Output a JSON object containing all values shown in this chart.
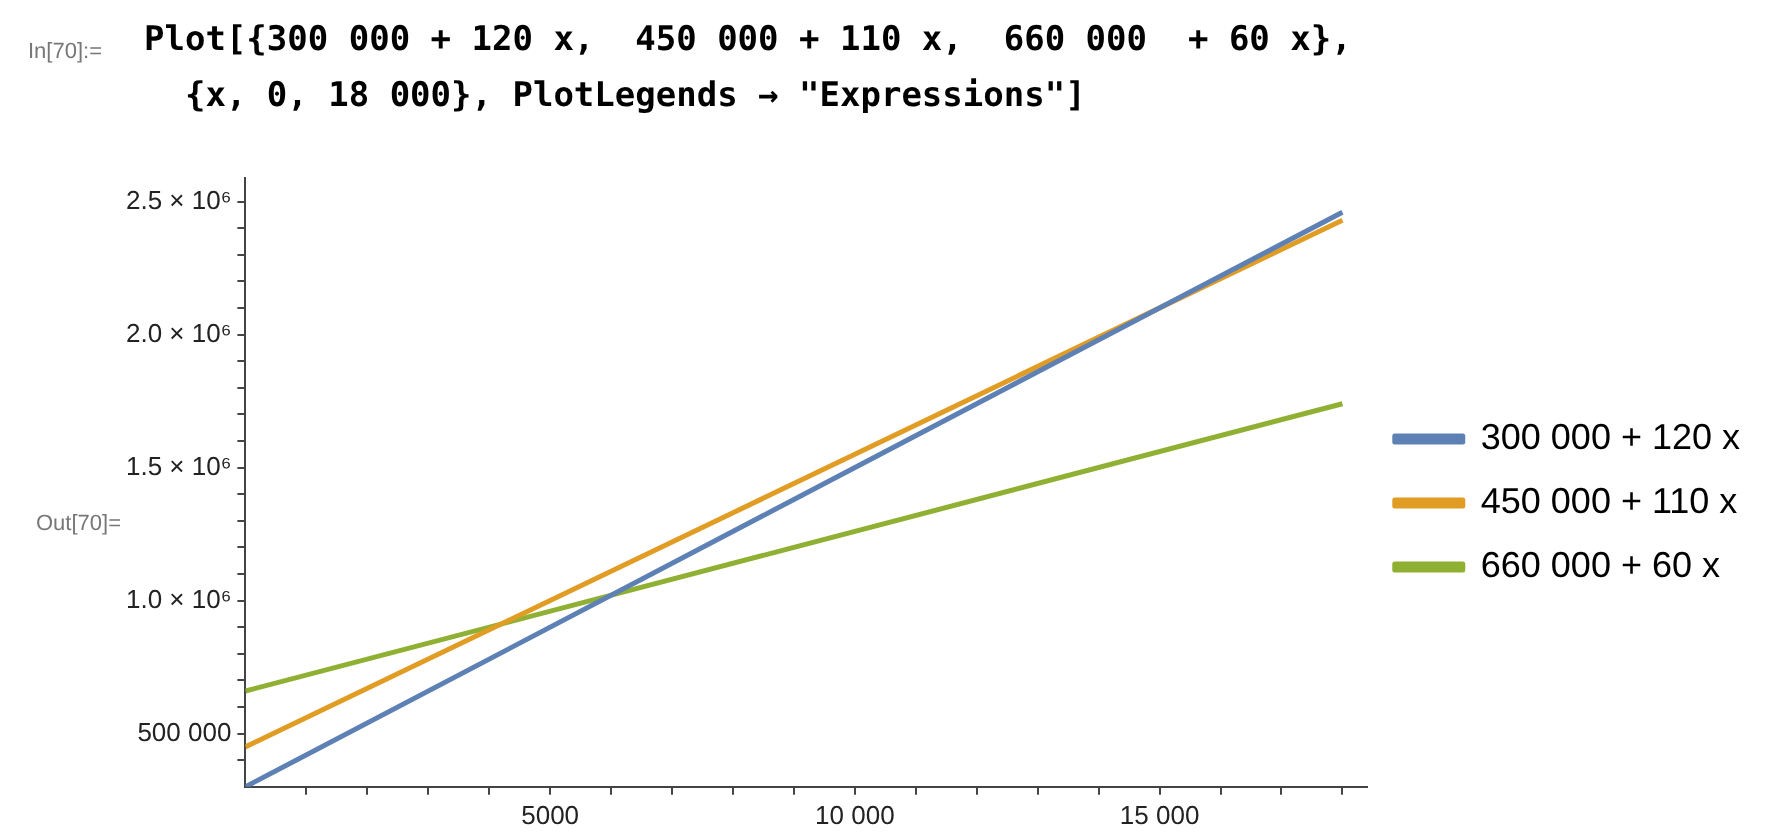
{
  "chart_data": {
    "type": "line",
    "title": "Plot[{300 000 + 120 x,  450 000 + 110 x,  660 000  + 60 x},\n  {x, 0, 18 000}, PlotLegends → \"Expressions\"]",
    "annotations": [
      "In[70]:=",
      "Out[70]="
    ],
    "x": [
      0,
      9000,
      18000
    ],
    "series": [
      {
        "name": "300 000 + 120 x",
        "color": "#5e81b5",
        "values": [
          300000,
          1380000,
          2460000
        ]
      },
      {
        "name": "450 000 + 110 x",
        "color": "#e19c24",
        "values": [
          450000,
          1440000,
          2430000
        ]
      },
      {
        "name": "660 000 + 60 x",
        "color": "#8fb032",
        "values": [
          660000,
          1200000,
          1740000
        ]
      }
    ],
    "xlim": [
      0,
      18400
    ],
    "xticks": [
      {
        "value": 1000,
        "label": null
      },
      {
        "value": 2000,
        "label": null
      },
      {
        "value": 3000,
        "label": null
      },
      {
        "value": 4000,
        "label": null
      },
      5000,
      {
        "value": 6000,
        "label": null
      },
      {
        "value": 7000,
        "label": null
      },
      {
        "value": 8000,
        "label": null
      },
      {
        "value": 9000,
        "label": null
      },
      {
        "value": 10000,
        "label": "10 000"
      },
      {
        "value": 11000,
        "label": null
      },
      {
        "value": 12000,
        "label": null
      },
      {
        "value": 13000,
        "label": null
      },
      {
        "value": 14000,
        "label": null
      },
      {
        "value": 15000,
        "label": "15 000"
      },
      {
        "value": 16000,
        "label": null
      },
      {
        "value": 17000,
        "label": null
      },
      {
        "value": 18000,
        "label": null
      }
    ],
    "ylim": [
      300000,
      2590000
    ],
    "yticks": [
      {
        "value": 400000,
        "label": null
      },
      {
        "value": 500000,
        "label": "500 000"
      },
      {
        "value": 600000,
        "label": null
      },
      {
        "value": 700000,
        "label": null
      },
      {
        "value": 800000,
        "label": null
      },
      {
        "value": 900000,
        "label": null
      },
      {
        "value": 1000000,
        "label": "1.0 × 10⁶"
      },
      {
        "value": 1100000,
        "label": null
      },
      {
        "value": 1200000,
        "label": null
      },
      {
        "value": 1300000,
        "label": null
      },
      {
        "value": 1400000,
        "label": null
      },
      {
        "value": 1500000,
        "label": "1.5 × 10⁶"
      },
      {
        "value": 1600000,
        "label": null
      },
      {
        "value": 1700000,
        "label": null
      },
      {
        "value": 1800000,
        "label": null
      },
      {
        "value": 1900000,
        "label": null
      },
      {
        "value": 2000000,
        "label": "2.0 × 10⁶"
      },
      {
        "value": 2100000,
        "label": null
      },
      {
        "value": 2200000,
        "label": null
      },
      {
        "value": 2300000,
        "label": null
      },
      {
        "value": 2400000,
        "label": null
      },
      {
        "value": 2500000,
        "label": "2.5 × 10⁶"
      }
    ],
    "grid": false,
    "legend": "right",
    "marker": "none",
    "line_style": "solid"
  }
}
